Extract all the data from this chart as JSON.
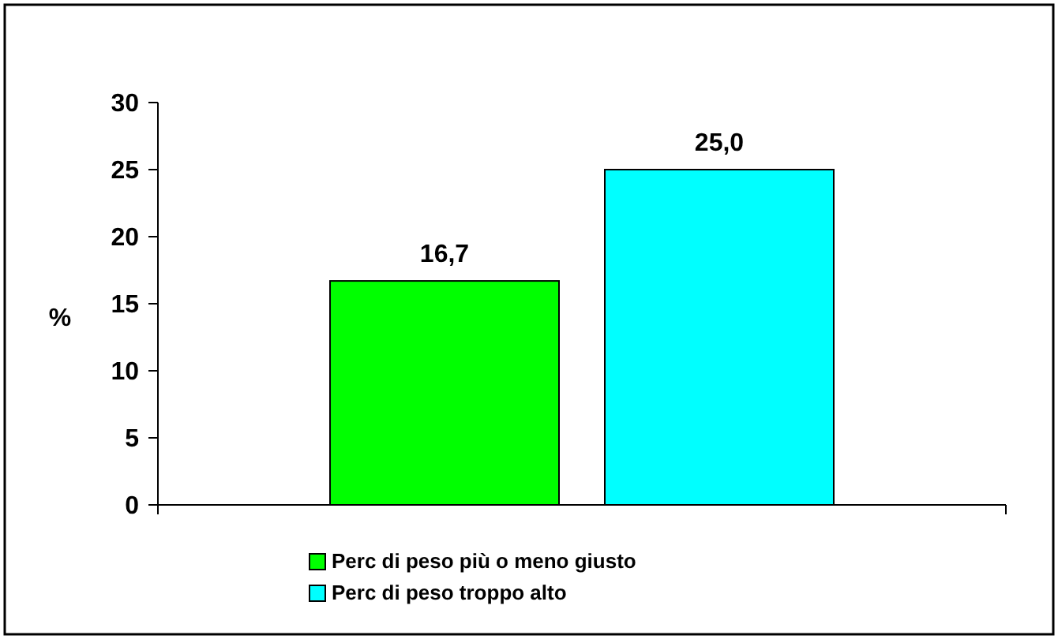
{
  "chart_data": {
    "type": "bar",
    "ylabel": "%",
    "categories": [
      null
    ],
    "series": [
      {
        "name": "Perc di peso più o meno giusto",
        "color": "#00ff00",
        "values": [
          16.7
        ],
        "value_labels": [
          "16,7"
        ]
      },
      {
        "name": "Perc di peso troppo alto",
        "color": "#00ffff",
        "values": [
          25.0
        ],
        "value_labels": [
          "25,0"
        ]
      }
    ],
    "ylim": [
      0,
      30
    ],
    "yticks": [
      0,
      5,
      10,
      15,
      20,
      25,
      30
    ],
    "grid": false,
    "legend": "bottom"
  }
}
